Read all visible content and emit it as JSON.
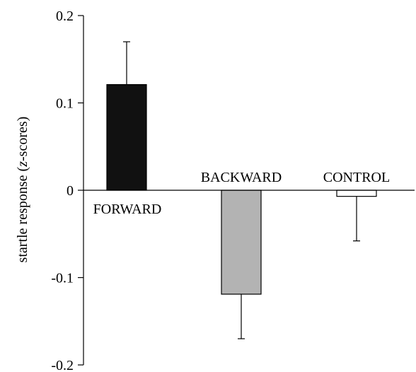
{
  "chart_data": {
    "type": "bar",
    "ylabel_prefix": "startle response (",
    "ylabel_italic": "z",
    "ylabel_suffix": "-scores)",
    "ylim": [
      -0.2,
      0.2
    ],
    "yticks": [
      {
        "value": 0.2,
        "label": "0.2"
      },
      {
        "value": 0.1,
        "label": "0.1"
      },
      {
        "value": 0,
        "label": "0"
      },
      {
        "value": -0.1,
        "label": "-0.1"
      },
      {
        "value": -0.2,
        "label": "-0.2"
      }
    ],
    "bars": [
      {
        "category": "FORWARD",
        "value": 0.121,
        "error": 0.049,
        "fill": "#111111",
        "label_side": "below"
      },
      {
        "category": "BACKWARD",
        "value": -0.119,
        "error": 0.051,
        "fill": "#b3b3b3",
        "label_side": "above"
      },
      {
        "category": "CONTROL",
        "value": -0.007,
        "error": 0.051,
        "fill": "#ffffff",
        "label_side": "above"
      }
    ],
    "grid": false,
    "legend": "none"
  }
}
